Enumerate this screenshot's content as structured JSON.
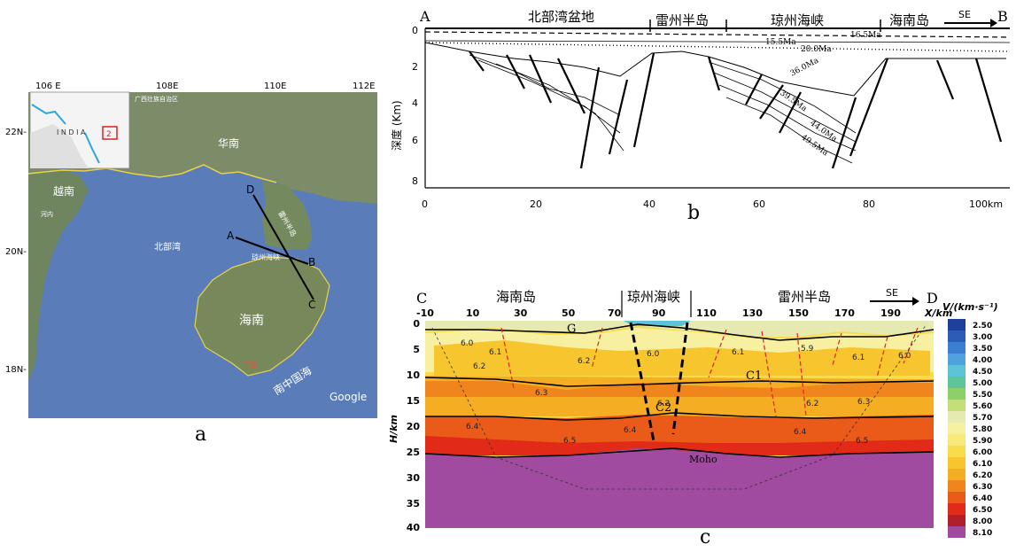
{
  "panel_a": {
    "label": "a",
    "lon_ticks": [
      "106 E",
      "108E",
      "110E",
      "112E"
    ],
    "lat_ticks": [
      "22N-",
      "20N-",
      "18N-"
    ],
    "inset": {
      "country": "I N D I A",
      "box_number": "2"
    },
    "place_names": {
      "south_china": "华南",
      "vietnam": "越南",
      "gulf": "北部湾",
      "hainan": "海南",
      "south_china_sea": "南中国海",
      "qiongzhou_strait": "琼州海峡",
      "leizhou": "雷州半岛",
      "guangxi": "广西壮族自治区",
      "sanya": "三亚",
      "hanoi": "河内"
    },
    "profile_points": [
      "D",
      "A",
      "B",
      "C"
    ],
    "credit": "Google",
    "colors": {
      "sea": "#5b7fb8",
      "land": "#7f8f6d",
      "coast": "#e8d24a",
      "line": "#000000"
    }
  },
  "panel_b": {
    "label": "b",
    "end_left": "A",
    "end_right": "B",
    "regions": [
      "北部湾盆地",
      "雷州半岛",
      "琼州海峡",
      "海南岛"
    ],
    "direction": "SE",
    "y_title": "深度 (Km)",
    "y_ticks": [
      "0",
      "2",
      "4",
      "6",
      "8"
    ],
    "x_ticks": [
      "0",
      "20",
      "40",
      "60",
      "80",
      "100km"
    ],
    "horizon_labels": [
      "16.5Ma",
      "15.5Ma",
      "20.0Ma",
      "36.0Ma",
      "39.5Ma",
      "44.0Ma",
      "49.5Ma"
    ]
  },
  "panel_c": {
    "label": "c",
    "end_left": "C",
    "end_right": "D",
    "regions": [
      "海南岛",
      "琼州海峡",
      "雷州半岛"
    ],
    "direction": "SE",
    "x_ticks": [
      "-10",
      "10",
      "30",
      "50",
      "70",
      "90",
      "110",
      "130",
      "150",
      "170",
      "190"
    ],
    "x_unit": "X/km",
    "y_ticks": [
      "0",
      "5",
      "10",
      "15",
      "20",
      "25",
      "30",
      "35",
      "40"
    ],
    "y_title": "H/km",
    "interface_labels": [
      "G",
      "C1",
      "C2",
      "Moho"
    ],
    "velocity_labels": [
      "6.0",
      "6.1",
      "6.2",
      "6.2",
      "6.0",
      "6.1",
      "5.9",
      "6.1",
      "6.0",
      "6.3",
      "6.2",
      "6.2",
      "6.3",
      "6.4",
      "6.5",
      "6.4",
      "6.4",
      "6.5"
    ],
    "legend_title": "V/(km·s⁻¹)",
    "legend": [
      {
        "value": "2.50",
        "color": "#1f3f9c"
      },
      {
        "value": "3.00",
        "color": "#2a5cb8"
      },
      {
        "value": "3.50",
        "color": "#3b7fd0"
      },
      {
        "value": "4.00",
        "color": "#4ea3df"
      },
      {
        "value": "4.50",
        "color": "#5cc3d9"
      },
      {
        "value": "5.00",
        "color": "#5fc49a"
      },
      {
        "value": "5.50",
        "color": "#8fcf6a"
      },
      {
        "value": "5.60",
        "color": "#c4df7a"
      },
      {
        "value": "5.70",
        "color": "#e6eab0"
      },
      {
        "value": "5.80",
        "color": "#f6f0a0"
      },
      {
        "value": "5.90",
        "color": "#f9e97a"
      },
      {
        "value": "6.00",
        "color": "#f8dc4c"
      },
      {
        "value": "6.10",
        "color": "#f7c62e"
      },
      {
        "value": "6.20",
        "color": "#f5ad24"
      },
      {
        "value": "6.30",
        "color": "#f0851e"
      },
      {
        "value": "6.40",
        "color": "#ea5a18"
      },
      {
        "value": "6.50",
        "color": "#e12a17"
      },
      {
        "value": "8.00",
        "color": "#b01f2a"
      },
      {
        "value": "8.10",
        "color": "#a04aa0"
      }
    ]
  }
}
